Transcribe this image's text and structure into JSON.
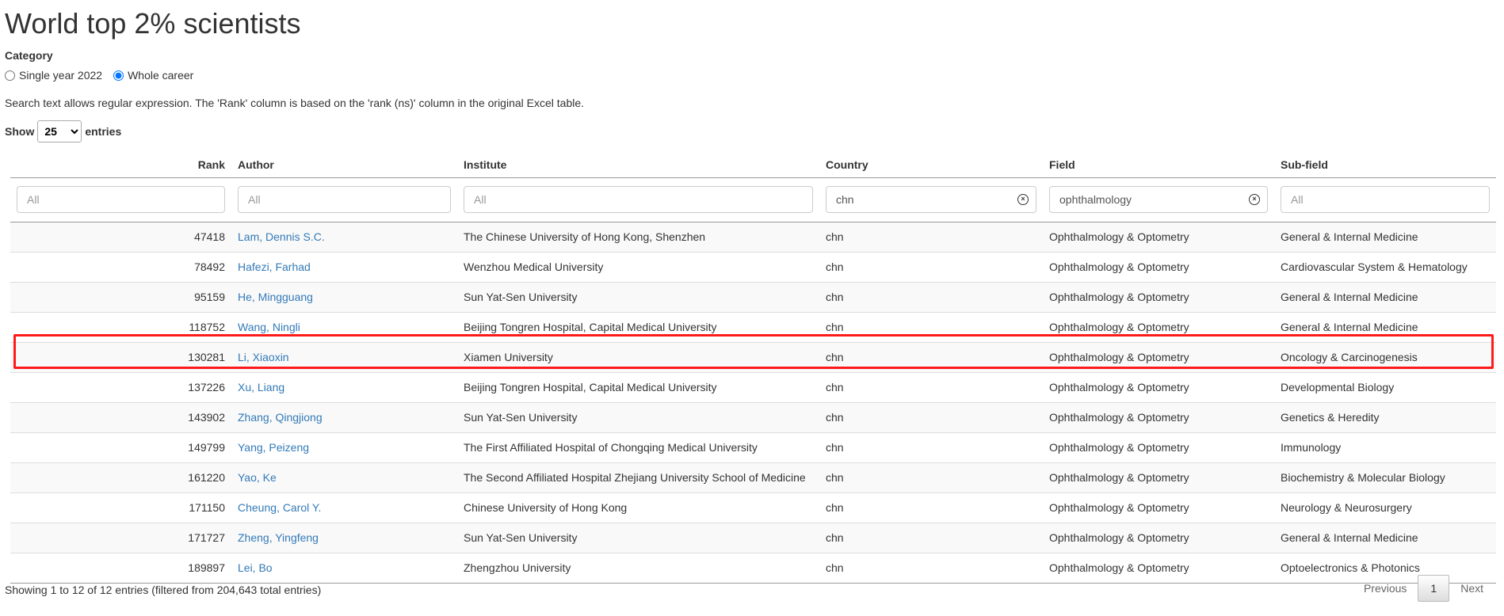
{
  "title": "World top 2% scientists",
  "category": {
    "label": "Category",
    "options": [
      {
        "label": "Single year 2022",
        "selected": false
      },
      {
        "label": "Whole career",
        "selected": true
      }
    ]
  },
  "note": "Search text allows regular expression. The 'Rank' column is based on the 'rank (ns)' column in the original Excel table.",
  "length": {
    "show_label": "Show",
    "value": "25",
    "entries_label": "entries"
  },
  "table": {
    "columns": [
      "Rank",
      "Author",
      "Institute",
      "Country",
      "Field",
      "Sub-field"
    ],
    "filters": [
      {
        "value": "",
        "placeholder": "All"
      },
      {
        "value": "",
        "placeholder": "All"
      },
      {
        "value": "",
        "placeholder": "All"
      },
      {
        "value": "chn",
        "placeholder": "All"
      },
      {
        "value": "ophthalmology",
        "placeholder": "All"
      },
      {
        "value": "",
        "placeholder": "All"
      }
    ],
    "rows": [
      [
        "47418",
        "Lam, Dennis S.C.",
        "The Chinese University of Hong Kong, Shenzhen",
        "chn",
        "Ophthalmology & Optometry",
        "General & Internal Medicine"
      ],
      [
        "78492",
        "Hafezi, Farhad",
        "Wenzhou Medical University",
        "chn",
        "Ophthalmology & Optometry",
        "Cardiovascular System & Hematology"
      ],
      [
        "95159",
        "He, Mingguang",
        "Sun Yat-Sen University",
        "chn",
        "Ophthalmology & Optometry",
        "General & Internal Medicine"
      ],
      [
        "118752",
        "Wang, Ningli",
        "Beijing Tongren Hospital, Capital Medical University",
        "chn",
        "Ophthalmology & Optometry",
        "General & Internal Medicine"
      ],
      [
        "130281",
        "Li, Xiaoxin",
        "Xiamen University",
        "chn",
        "Ophthalmology & Optometry",
        "Oncology & Carcinogenesis"
      ],
      [
        "137226",
        "Xu, Liang",
        "Beijing Tongren Hospital, Capital Medical University",
        "chn",
        "Ophthalmology & Optometry",
        "Developmental Biology"
      ],
      [
        "143902",
        "Zhang, Qingjiong",
        "Sun Yat-Sen University",
        "chn",
        "Ophthalmology & Optometry",
        "Genetics & Heredity"
      ],
      [
        "149799",
        "Yang, Peizeng",
        "The First Affiliated Hospital of Chongqing Medical University",
        "chn",
        "Ophthalmology & Optometry",
        "Immunology"
      ],
      [
        "161220",
        "Yao, Ke",
        "The Second Affiliated Hospital Zhejiang University School of Medicine",
        "chn",
        "Ophthalmology & Optometry",
        "Biochemistry & Molecular Biology"
      ],
      [
        "171150",
        "Cheung, Carol Y.",
        "Chinese University of Hong Kong",
        "chn",
        "Ophthalmology & Optometry",
        "Neurology & Neurosurgery"
      ],
      [
        "171727",
        "Zheng, Yingfeng",
        "Sun Yat-Sen University",
        "chn",
        "Ophthalmology & Optometry",
        "General & Internal Medicine"
      ],
      [
        "189897",
        "Lei, Bo",
        "Zhengzhou University",
        "chn",
        "Ophthalmology & Optometry",
        "Optoelectronics & Photonics"
      ]
    ],
    "highlighted_row_rank": "130281",
    "highlight_color": "#ff1a1a"
  },
  "footer": {
    "info": "Showing 1 to 12 of 12 entries (filtered from 204,643 total entries)",
    "previous": "Previous",
    "page": "1",
    "next": "Next"
  }
}
